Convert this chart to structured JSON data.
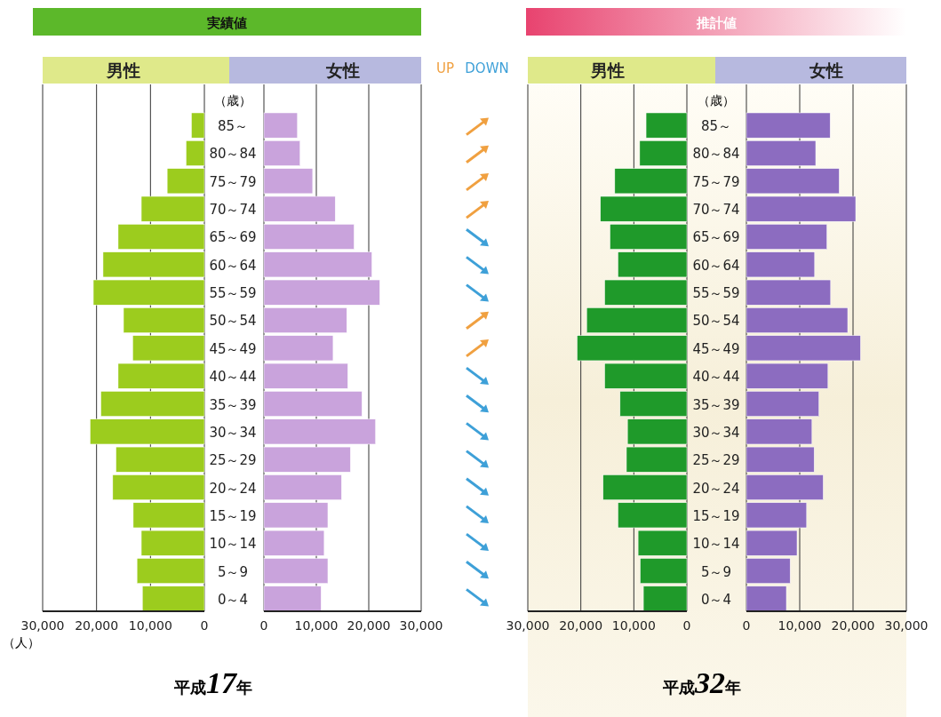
{
  "chart_data": [
    {
      "type": "bar",
      "orientation": "horizontal",
      "title": "男性",
      "categories": [
        "85～",
        "80～84",
        "75～79",
        "70～74",
        "65～69",
        "60～64",
        "55～59",
        "50～54",
        "45～49",
        "40～44",
        "35～39",
        "30～34",
        "25～29",
        "20～24",
        "15～19",
        "10～14",
        "5～9",
        "0～4"
      ],
      "values": [
        2400,
        3400,
        6900,
        11700,
        16000,
        18800,
        20600,
        15000,
        13300,
        16000,
        19200,
        21200,
        16400,
        17000,
        13200,
        11700,
        12500,
        11500
      ],
      "color": "#9ccc1e",
      "xlim": [
        30000,
        0
      ],
      "xticks": [
        {
          "value": 30000,
          "label": "30,000"
        },
        {
          "value": 20000,
          "label": "20,000"
        },
        {
          "value": 10000,
          "label": "10,000"
        },
        {
          "value": 0,
          "label": "0"
        }
      ],
      "grid": "x",
      "annotations": [
        "実績値",
        "（歳）",
        "平成17年",
        "（人）"
      ]
    },
    {
      "type": "bar",
      "orientation": "horizontal",
      "title": "女性",
      "categories": [
        "85～",
        "80～84",
        "75～79",
        "70～74",
        "65～69",
        "60～64",
        "55～59",
        "50～54",
        "45～49",
        "40～44",
        "35～39",
        "30～34",
        "25～29",
        "20～24",
        "15～19",
        "10～14",
        "5～9",
        "0～4"
      ],
      "values": [
        6400,
        6900,
        9300,
        13600,
        17200,
        20600,
        22100,
        15800,
        13200,
        16000,
        18700,
        21300,
        16500,
        14800,
        12200,
        11500,
        12200,
        10900
      ],
      "color": "#c9a3dc",
      "xlim": [
        0,
        30000
      ],
      "xticks": [
        {
          "value": 0,
          "label": "0"
        },
        {
          "value": 10000,
          "label": "10,000"
        },
        {
          "value": 20000,
          "label": "20,000"
        },
        {
          "value": 30000,
          "label": "30,000"
        }
      ],
      "grid": "x",
      "tick_labels": "x",
      "annotations": [
        "UP",
        "DOWN"
      ]
    },
    {
      "type": "bar",
      "orientation": "horizontal",
      "title": "男性",
      "categories": [
        "85～",
        "80～84",
        "75～79",
        "70～74",
        "65～69",
        "60～64",
        "55～59",
        "50～54",
        "45～49",
        "40～44",
        "35～39",
        "30～34",
        "25～29",
        "20～24",
        "15～19",
        "10～14",
        "5～9",
        "0～4"
      ],
      "values": [
        7700,
        8900,
        13600,
        16300,
        14500,
        13000,
        15500,
        18900,
        20700,
        15500,
        12600,
        11200,
        11400,
        15800,
        13000,
        9200,
        8800,
        8200
      ],
      "color": "#1f9a2a",
      "xlim": [
        30000,
        0
      ],
      "xticks": [
        {
          "value": 30000,
          "label": "30,000"
        },
        {
          "value": 20000,
          "label": "20,000"
        },
        {
          "value": 10000,
          "label": "10,000"
        },
        {
          "value": 0,
          "label": "0"
        }
      ],
      "grid": "x",
      "annotations": [
        "推計値",
        "（歳）",
        "平成32年"
      ]
    },
    {
      "type": "bar",
      "orientation": "horizontal",
      "title": "女性",
      "categories": [
        "85～",
        "80～84",
        "75～79",
        "70～74",
        "65～69",
        "60～64",
        "55～59",
        "50～54",
        "45～49",
        "40～44",
        "35～39",
        "30～34",
        "25～29",
        "20～24",
        "15～19",
        "10～14",
        "5～9",
        "0～4"
      ],
      "values": [
        15700,
        13000,
        17400,
        20500,
        15100,
        12800,
        15800,
        19000,
        21400,
        15300,
        13600,
        12300,
        12700,
        14400,
        11300,
        9500,
        8200,
        7500
      ],
      "color": "#8c6cc0",
      "xlim": [
        0,
        30000
      ],
      "xticks": [
        {
          "value": 0,
          "label": "0"
        },
        {
          "value": 10000,
          "label": "10,000"
        },
        {
          "value": 20000,
          "label": "20,000"
        },
        {
          "value": 30000,
          "label": "30,000"
        }
      ],
      "grid": "x",
      "tick_labels": "x"
    }
  ]
}
